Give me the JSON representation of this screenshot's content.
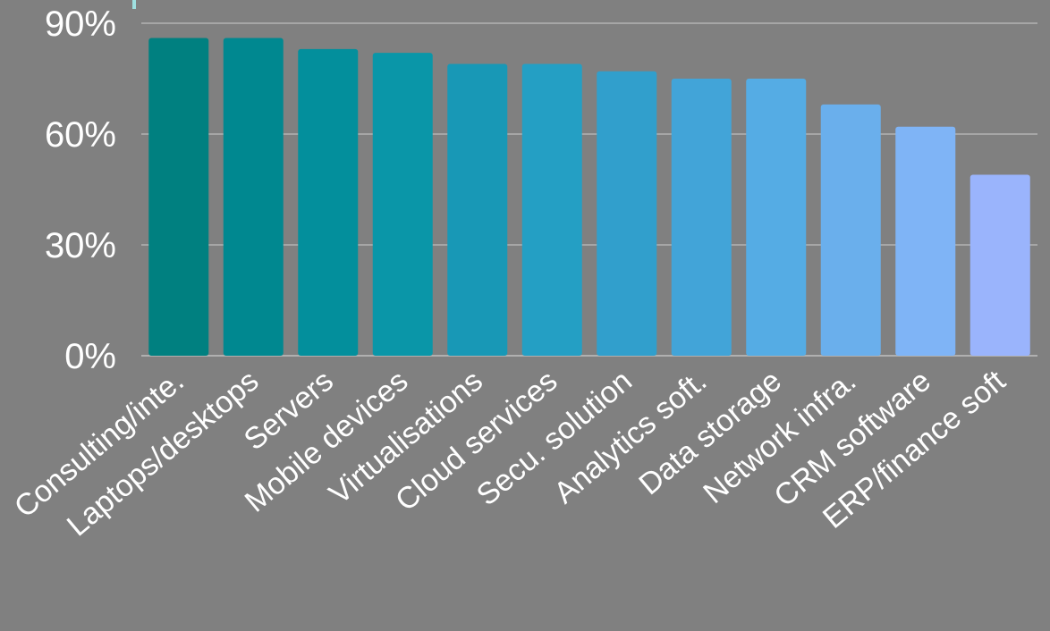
{
  "chart_data": {
    "type": "bar",
    "categories": [
      "Consulting/inte.",
      "Laptops/desktops",
      "Servers",
      "Mobile devices",
      "Virtualisations",
      "Cloud services",
      "Secu. solution",
      "Analytics soft.",
      "Data storage",
      "Network infra.",
      "CRM software",
      "ERP/finance soft"
    ],
    "values": [
      86,
      86,
      83,
      82,
      79,
      79,
      77,
      75,
      75,
      68,
      62,
      49
    ],
    "unit": "%",
    "ylim": [
      0,
      90
    ],
    "yticks": [
      0,
      30,
      60,
      90
    ],
    "ytick_labels": [
      "0%",
      "30%",
      "60%",
      "90%"
    ],
    "title": "",
    "xlabel": "",
    "ylabel": "",
    "grid": true,
    "bar_colors": [
      "#008080",
      "#008890",
      "#038f9c",
      "#0a96a8",
      "#1898b6",
      "#249fc4",
      "#319fcc",
      "#42a4d8",
      "#55ace4",
      "#6aafec",
      "#7fb4f6",
      "#9ab4fc"
    ],
    "background": "#808080"
  }
}
